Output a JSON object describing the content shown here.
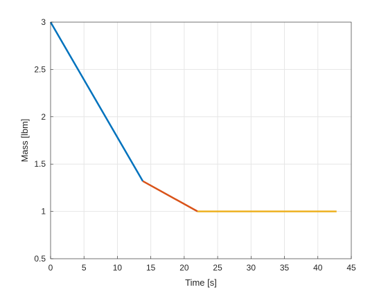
{
  "chart_data": {
    "type": "line",
    "title": "",
    "xlabel": "Time [s]",
    "ylabel": "Mass [lbm]",
    "xlim": [
      0,
      45
    ],
    "ylim": [
      0.5,
      3
    ],
    "xticks": [
      "0",
      "5",
      "10",
      "15",
      "20",
      "25",
      "30",
      "35",
      "40",
      "45"
    ],
    "yticks": [
      "0.5",
      "1",
      "1.5",
      "2",
      "2.5",
      "3"
    ],
    "grid": true,
    "legend": "none",
    "series": [
      {
        "color": "#0072bd",
        "x": [
          0,
          13.8
        ],
        "y": [
          3,
          1.32
        ]
      },
      {
        "color": "#d95319",
        "x": [
          13.8,
          22
        ],
        "y": [
          1.32,
          1.0
        ]
      },
      {
        "color": "#edb120",
        "x": [
          22,
          42.8
        ],
        "y": [
          1.0,
          1.0
        ]
      }
    ]
  }
}
